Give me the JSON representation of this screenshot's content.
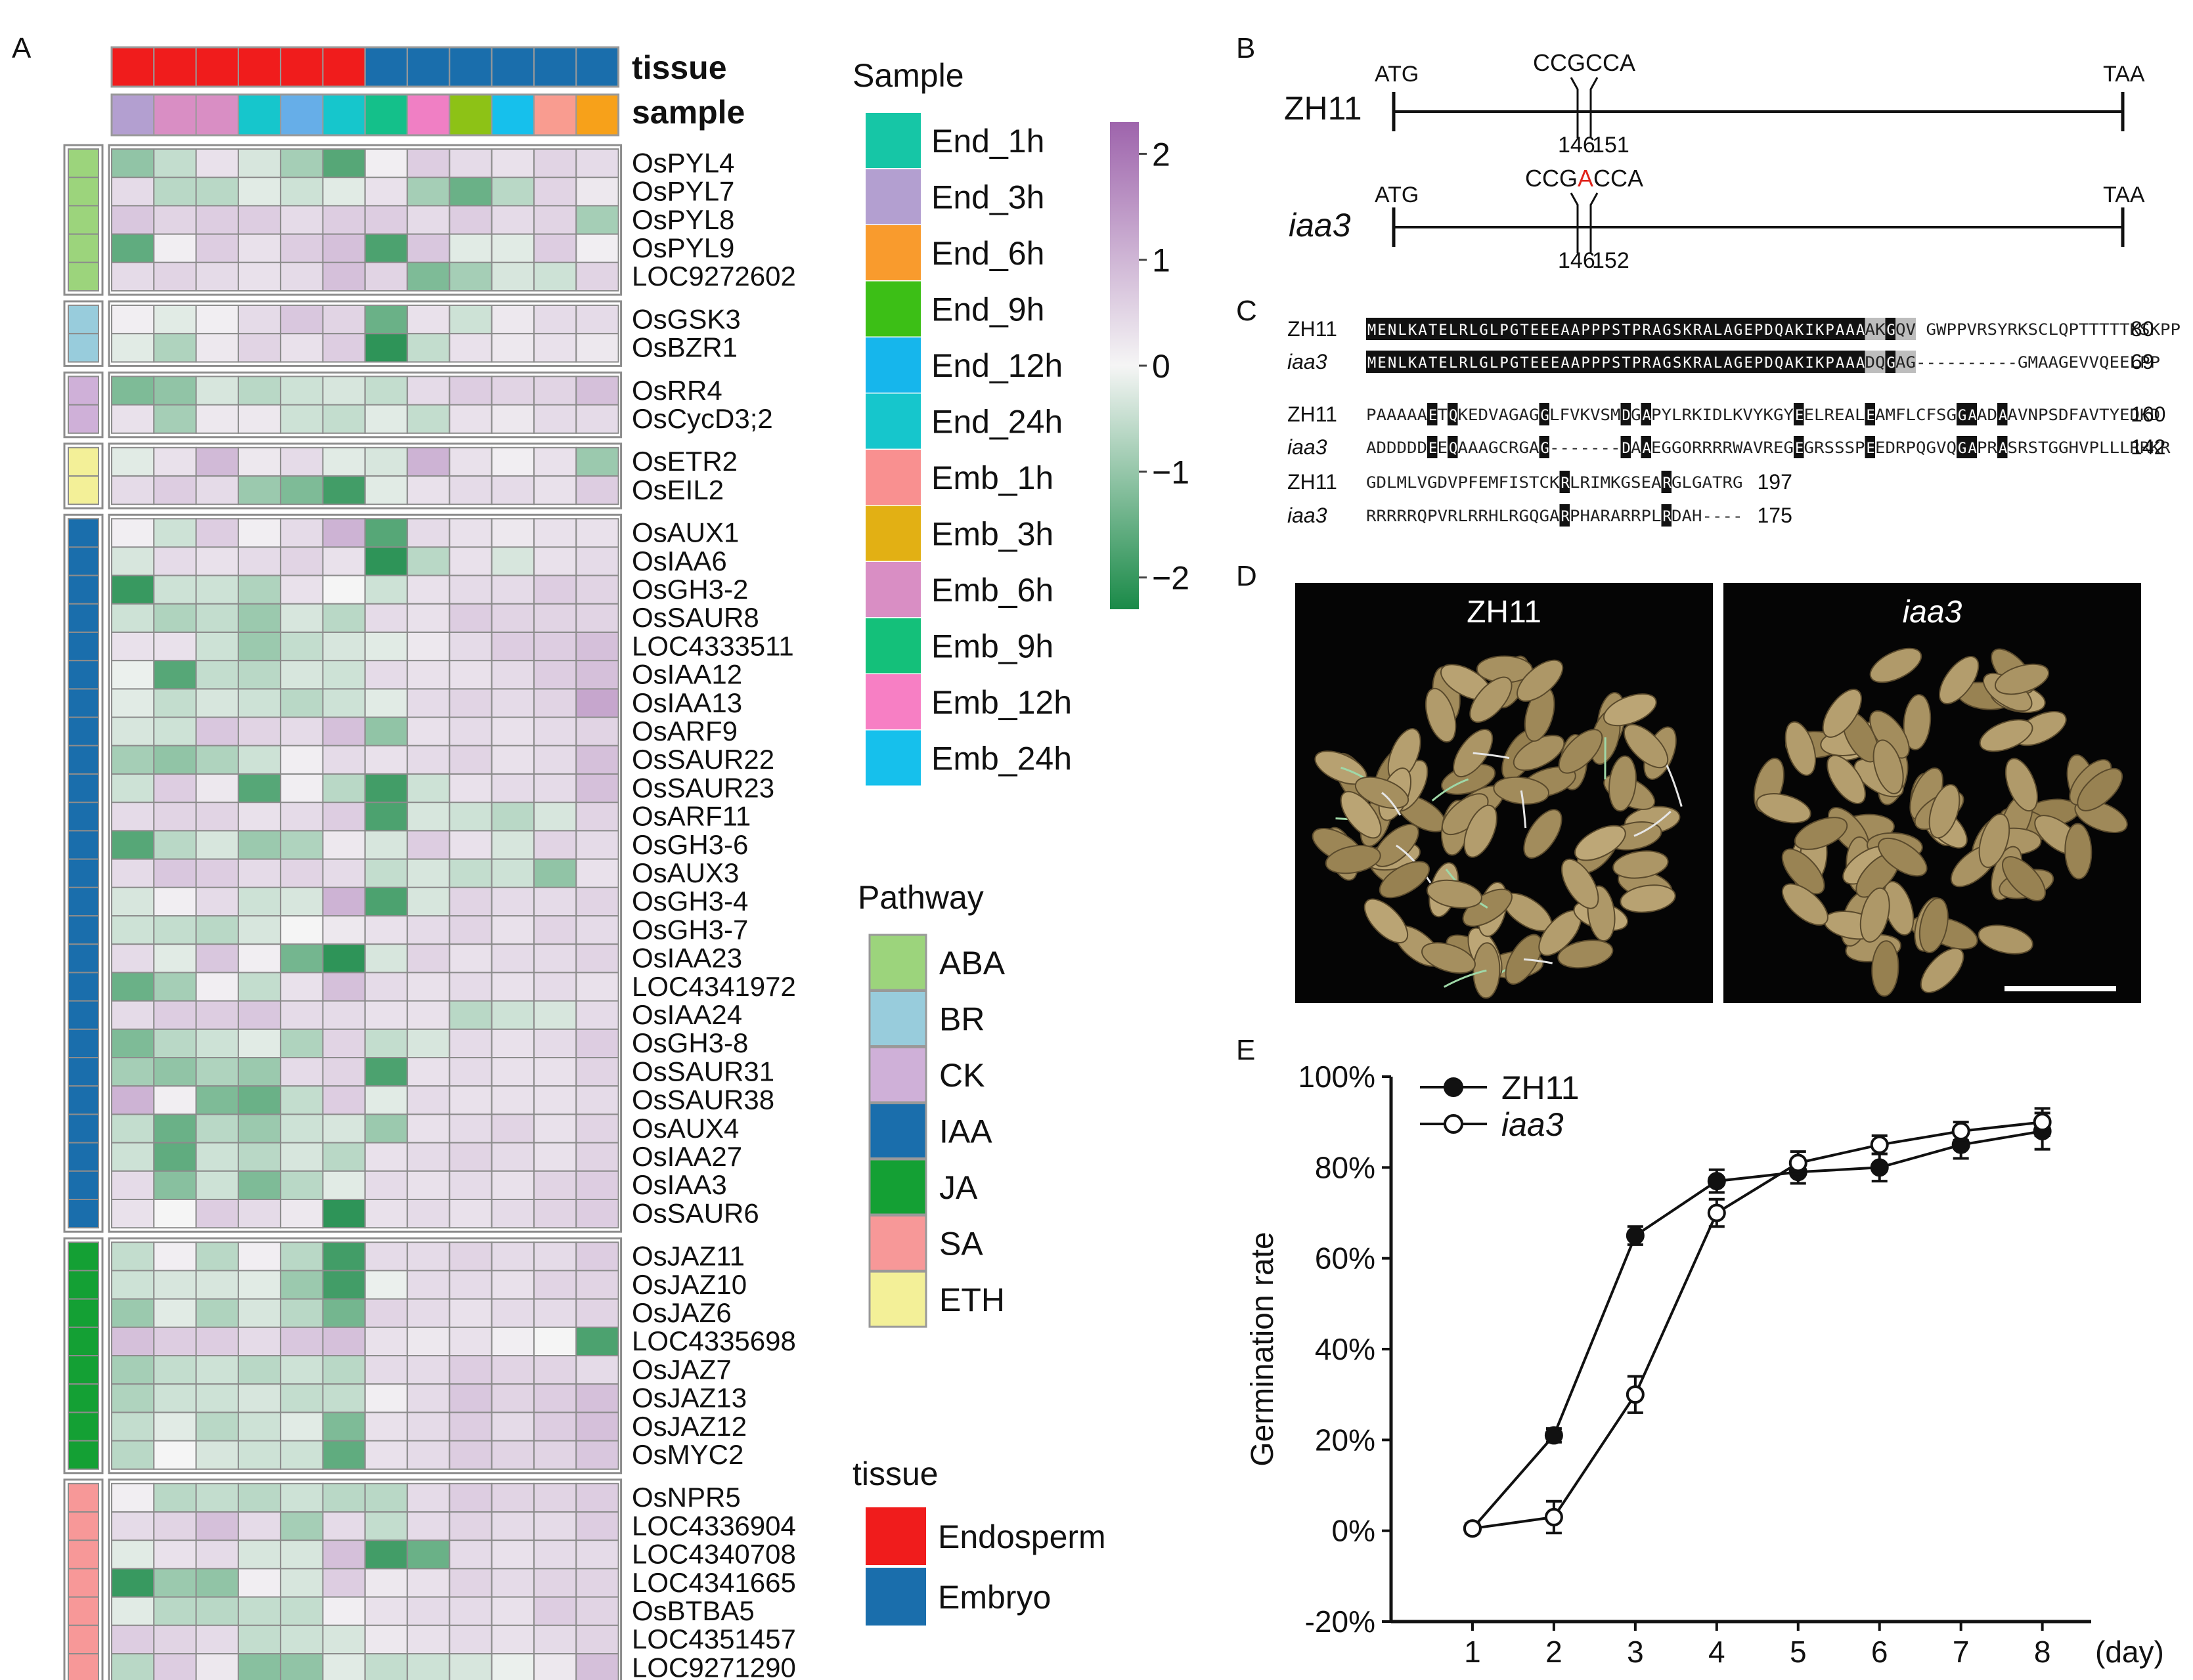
{
  "panel_letters": [
    "A",
    "B",
    "C",
    "D",
    "E"
  ],
  "heatmap": {
    "top_labels": {
      "tissue": "tissue",
      "sample": "sample"
    },
    "tissue_colors": [
      "Endosperm",
      "Endosperm",
      "Endosperm",
      "Endosperm",
      "Endosperm",
      "Endosperm",
      "Embryo",
      "Embryo",
      "Embryo",
      "Embryo",
      "Embryo",
      "Embryo"
    ],
    "sample_colors": [
      "#b39fd0",
      "#d98ec4",
      "#d98ec4",
      "#16c6cc",
      "#66aee8",
      "#16c6cc",
      "#14c08a",
      "#f07fc4",
      "#8dc216",
      "#16c0ec",
      "#f99c90",
      "#f7a11a"
    ],
    "groups": [
      {
        "pathway": "ABA",
        "genes": [
          "OsPYL4",
          "OsPYL7",
          "OsPYL8",
          "OsPYL9",
          "LOC9272602"
        ]
      },
      {
        "pathway": "BR",
        "genes": [
          "OsGSK3",
          "OsBZR1"
        ]
      },
      {
        "pathway": "CK",
        "genes": [
          "OsRR4",
          "OsCycD3;2"
        ]
      },
      {
        "pathway": "ETH",
        "genes": [
          "OsETR2",
          "OsEIL2"
        ]
      },
      {
        "pathway": "IAA",
        "genes": [
          "OsAUX1",
          "OsIAA6",
          "OsGH3-2",
          "OsSAUR8",
          "LOC4333511",
          "OsIAA12",
          "OsIAA13",
          "OsARF9",
          "OsSAUR22",
          "OsSAUR23",
          "OsARF11",
          "OsGH3-6",
          "OsAUX3",
          "OsGH3-4",
          "OsGH3-7",
          "OsIAA23",
          "LOC4341972",
          "OsIAA24",
          "OsGH3-8",
          "OsSAUR31",
          "OsSAUR38",
          "OsAUX4",
          "OsIAA27",
          "OsIAA3",
          "OsSAUR6"
        ]
      },
      {
        "pathway": "JA",
        "genes": [
          "OsJAZ11",
          "OsJAZ10",
          "OsJAZ6",
          "LOC4335698",
          "OsJAZ7",
          "OsJAZ13",
          "OsJAZ12",
          "OsMYC2"
        ]
      },
      {
        "pathway": "SA",
        "genes": [
          "OsNPR5",
          "LOC4336904",
          "LOC4340708",
          "LOC4341665",
          "OsBTBA5",
          "LOC4351457",
          "LOC9271290"
        ]
      }
    ],
    "values": [
      [
        -1.0,
        -0.5,
        0.3,
        -0.3,
        -0.8,
        -1.6,
        0.1,
        0.6,
        0.4,
        0.3,
        0.5,
        0.4
      ],
      [
        0.4,
        -0.6,
        -0.6,
        -0.2,
        -0.4,
        -0.2,
        0.3,
        -0.8,
        -1.4,
        -0.6,
        0.5,
        0.2
      ],
      [
        0.7,
        0.5,
        0.6,
        0.6,
        0.4,
        0.6,
        0.6,
        0.4,
        0.6,
        0.4,
        0.5,
        -0.8
      ],
      [
        -1.5,
        0.1,
        0.6,
        0.3,
        0.6,
        0.8,
        -1.7,
        0.7,
        -0.2,
        -0.2,
        0.6,
        0.1
      ],
      [
        0.4,
        0.5,
        0.4,
        0.3,
        0.4,
        0.8,
        0.5,
        -1.2,
        -0.8,
        -0.3,
        -0.4,
        0.5
      ],
      [
        0.1,
        -0.2,
        0.1,
        0.4,
        0.7,
        0.5,
        -1.4,
        0.3,
        -0.4,
        0.2,
        0.4,
        0.4
      ],
      [
        -0.2,
        -0.7,
        0.2,
        0.5,
        0.3,
        0.6,
        -2.0,
        -0.5,
        0.3,
        0.2,
        0.3,
        0.2
      ],
      [
        -1.2,
        -1.0,
        -0.3,
        -0.6,
        -0.4,
        -0.3,
        -0.5,
        0.4,
        0.6,
        0.5,
        0.5,
        0.8
      ],
      [
        0.3,
        -0.8,
        0.2,
        0.2,
        -0.4,
        -0.5,
        -0.2,
        -0.5,
        0.3,
        0.2,
        0.4,
        0.4
      ],
      [
        -0.2,
        0.3,
        0.9,
        0.2,
        0.4,
        -0.2,
        -0.3,
        1.0,
        0.3,
        0.1,
        0.3,
        -0.9
      ],
      [
        0.4,
        0.6,
        0.4,
        -0.9,
        -1.2,
        -1.8,
        -0.2,
        0.3,
        0.4,
        0.4,
        0.3,
        0.6
      ],
      [
        0.1,
        -0.4,
        0.6,
        0.1,
        0.4,
        1.0,
        -1.6,
        0.4,
        0.3,
        0.2,
        0.3,
        0.3
      ],
      [
        -0.3,
        0.4,
        0.3,
        0.4,
        0.5,
        0.3,
        -2.0,
        -0.6,
        0.3,
        -0.3,
        0.3,
        0.4
      ],
      [
        -1.9,
        -0.4,
        -0.4,
        -0.7,
        0.3,
        0.0,
        -0.4,
        0.3,
        0.4,
        0.4,
        0.6,
        0.5
      ],
      [
        -0.4,
        -0.7,
        -0.5,
        -0.9,
        -0.3,
        -0.6,
        0.4,
        0.3,
        0.6,
        0.5,
        0.5,
        0.5
      ],
      [
        0.3,
        0.3,
        -0.4,
        -0.9,
        -0.5,
        -0.3,
        -0.2,
        0.2,
        0.4,
        0.6,
        0.6,
        0.8
      ],
      [
        -0.1,
        -1.6,
        -0.5,
        -0.6,
        -0.3,
        -0.4,
        0.4,
        0.3,
        0.3,
        0.4,
        0.6,
        0.8
      ],
      [
        -0.2,
        -0.5,
        -0.3,
        -0.4,
        -0.6,
        -0.4,
        -0.2,
        0.4,
        0.5,
        0.4,
        0.5,
        1.2
      ],
      [
        -0.3,
        -0.4,
        0.7,
        0.5,
        0.4,
        0.8,
        -1.0,
        0.3,
        0.4,
        0.3,
        0.4,
        0.5
      ],
      [
        -0.8,
        -1.0,
        -0.7,
        -0.4,
        0.1,
        0.4,
        0.3,
        0.4,
        0.5,
        0.3,
        0.4,
        0.8
      ],
      [
        -0.4,
        0.6,
        0.2,
        -1.6,
        0.1,
        -0.6,
        -1.8,
        -0.4,
        0.3,
        0.4,
        0.4,
        0.8
      ],
      [
        0.4,
        0.5,
        0.5,
        0.3,
        0.4,
        0.6,
        -1.7,
        -0.3,
        -0.4,
        -0.6,
        -0.3,
        0.5
      ],
      [
        -1.6,
        -0.6,
        -0.3,
        -0.9,
        -0.7,
        0.2,
        -0.3,
        0.6,
        0.3,
        -0.3,
        0.5,
        0.4
      ],
      [
        0.4,
        0.7,
        0.6,
        0.4,
        0.5,
        0.4,
        -0.5,
        -0.3,
        -0.5,
        -0.4,
        -1.0,
        0.3
      ],
      [
        -0.3,
        0.1,
        0.4,
        -0.4,
        -0.3,
        1.0,
        -1.7,
        -0.3,
        0.5,
        0.4,
        0.4,
        0.5
      ],
      [
        -0.4,
        -0.5,
        -0.6,
        -0.3,
        0.0,
        0.2,
        0.3,
        0.4,
        0.5,
        0.3,
        0.5,
        0.4
      ],
      [
        0.4,
        -0.2,
        0.7,
        0.1,
        -1.3,
        -2.0,
        -0.3,
        0.5,
        0.3,
        0.4,
        0.4,
        0.5
      ],
      [
        -1.4,
        -0.8,
        0.1,
        -0.5,
        0.3,
        0.8,
        0.4,
        0.3,
        0.4,
        0.3,
        0.4,
        0.3
      ],
      [
        0.4,
        0.6,
        0.6,
        0.7,
        0.4,
        0.4,
        0.3,
        0.3,
        -0.6,
        -0.4,
        -0.3,
        0.4
      ],
      [
        -1.2,
        -0.6,
        -0.4,
        -0.2,
        -0.7,
        0.5,
        -0.5,
        -0.3,
        0.4,
        0.3,
        0.4,
        0.6
      ],
      [
        -0.8,
        -1.0,
        -0.7,
        -0.9,
        0.4,
        0.5,
        -1.7,
        0.3,
        0.4,
        0.3,
        0.3,
        0.5
      ],
      [
        1.0,
        0.1,
        -1.2,
        -1.4,
        -0.5,
        0.6,
        -0.2,
        0.4,
        0.3,
        0.3,
        0.3,
        0.4
      ],
      [
        -0.5,
        -1.4,
        -0.6,
        -0.9,
        -0.4,
        -0.3,
        -0.9,
        0.3,
        0.4,
        0.5,
        0.3,
        0.5
      ],
      [
        -0.4,
        -1.5,
        -0.4,
        -0.6,
        -0.3,
        -0.6,
        0.3,
        0.4,
        0.5,
        0.4,
        0.3,
        0.5
      ],
      [
        0.4,
        -1.1,
        -0.4,
        -1.2,
        -0.6,
        -0.2,
        0.4,
        0.3,
        0.4,
        0.3,
        0.5,
        0.6
      ],
      [
        0.3,
        0.0,
        0.6,
        0.4,
        0.2,
        -2.0,
        0.3,
        0.4,
        0.3,
        0.4,
        0.5,
        0.6
      ],
      [
        -0.5,
        0.1,
        -0.6,
        0.1,
        -0.6,
        -1.8,
        0.4,
        0.4,
        0.5,
        0.4,
        0.4,
        0.6
      ],
      [
        -0.4,
        -0.3,
        -0.3,
        -0.2,
        -0.9,
        -1.8,
        -0.1,
        0.4,
        0.4,
        0.3,
        0.5,
        0.5
      ],
      [
        -0.9,
        -0.2,
        -0.7,
        -0.3,
        -0.6,
        -1.3,
        0.5,
        0.4,
        0.3,
        0.4,
        0.4,
        0.5
      ],
      [
        0.8,
        0.6,
        0.6,
        0.4,
        0.7,
        0.8,
        0.3,
        0.2,
        0.3,
        0.1,
        0.0,
        -1.7
      ],
      [
        -0.8,
        -0.5,
        -0.4,
        -0.6,
        -0.4,
        -0.6,
        0.4,
        0.4,
        0.6,
        0.5,
        0.5,
        0.4
      ],
      [
        -0.7,
        -0.4,
        -0.4,
        -0.3,
        -0.5,
        -0.5,
        0.1,
        0.4,
        0.7,
        0.5,
        0.6,
        0.8
      ],
      [
        -0.5,
        -0.2,
        -0.6,
        -0.4,
        -0.2,
        -1.2,
        0.3,
        0.4,
        0.6,
        0.4,
        0.6,
        0.8
      ],
      [
        -0.6,
        0.0,
        -0.3,
        -0.4,
        -0.4,
        -1.5,
        0.3,
        0.4,
        0.6,
        0.5,
        0.5,
        0.7
      ],
      [
        0.1,
        -0.6,
        -0.5,
        -0.6,
        -0.4,
        -0.6,
        -0.6,
        0.4,
        0.6,
        0.5,
        0.5,
        0.6
      ],
      [
        0.4,
        0.5,
        0.8,
        0.4,
        -0.8,
        0.4,
        -0.5,
        0.4,
        0.5,
        0.4,
        0.4,
        0.6
      ],
      [
        -0.2,
        0.3,
        0.4,
        -0.3,
        -0.3,
        0.8,
        -1.8,
        -1.4,
        0.4,
        0.3,
        0.4,
        0.4
      ],
      [
        -1.9,
        -0.9,
        -1.0,
        0.1,
        -0.3,
        0.6,
        0.2,
        0.3,
        0.5,
        0.4,
        0.5,
        0.5
      ],
      [
        -0.2,
        -0.6,
        -0.6,
        -0.5,
        -0.5,
        0.1,
        0.3,
        0.4,
        0.4,
        0.3,
        0.6,
        0.5
      ],
      [
        0.6,
        0.5,
        0.4,
        -0.5,
        -0.4,
        -0.3,
        0.2,
        0.3,
        0.4,
        0.3,
        0.4,
        0.5
      ],
      [
        -0.6,
        0.6,
        0.2,
        -1.1,
        -1.0,
        -0.2,
        -0.5,
        -0.4,
        -0.3,
        -0.1,
        0.2,
        0.8
      ]
    ],
    "colorbar": {
      "ticks": [
        "2",
        "1",
        "0",
        "−1",
        "−2"
      ],
      "tick_values": [
        2,
        1,
        0,
        -1,
        -2
      ],
      "min": -2.3,
      "max": 2.3
    }
  },
  "legends": {
    "sample": {
      "title": "Sample",
      "items": [
        {
          "label": "End_1h",
          "color": "#16c6a6"
        },
        {
          "label": "End_3h",
          "color": "#b39fd0"
        },
        {
          "label": "End_6h",
          "color": "#f99b2d"
        },
        {
          "label": "End_9h",
          "color": "#3cbf16"
        },
        {
          "label": "End_12h",
          "color": "#16b6ec"
        },
        {
          "label": "End_24h",
          "color": "#16c6cc"
        },
        {
          "label": "Emb_1h",
          "color": "#f99090"
        },
        {
          "label": "Emb_3h",
          "color": "#e2b014"
        },
        {
          "label": "Emb_6h",
          "color": "#d98ec4"
        },
        {
          "label": "Emb_9h",
          "color": "#14c07a"
        },
        {
          "label": "Emb_12h",
          "color": "#f77fc4"
        },
        {
          "label": "Emb_24h",
          "color": "#16c0ec"
        }
      ]
    },
    "pathway": {
      "title": "Pathway",
      "items": [
        {
          "label": "ABA",
          "color": "#9cd47c"
        },
        {
          "label": "BR",
          "color": "#98ccdc"
        },
        {
          "label": "CK",
          "color": "#cfb0d8"
        },
        {
          "label": "IAA",
          "color": "#1a6eac"
        },
        {
          "label": "JA",
          "color": "#14a034"
        },
        {
          "label": "SA",
          "color": "#f79898"
        },
        {
          "label": "ETH",
          "color": "#f3f098"
        }
      ]
    },
    "tissue": {
      "title": "tissue",
      "items": [
        {
          "label": "Endosperm",
          "color": "#f01c1c"
        },
        {
          "label": "Embryo",
          "color": "#1a6eac"
        }
      ]
    }
  },
  "gene_structure": {
    "rows": [
      {
        "name": "ZH11",
        "italic": false,
        "start": "ATG",
        "end": "TAA",
        "seq": [
          "CCG",
          "",
          "CCA"
        ],
        "pos_left": "146",
        "pos_right": "151"
      },
      {
        "name": "iaa3",
        "italic": true,
        "start": "ATG",
        "end": "TAA",
        "seq": [
          "CCG",
          "A",
          "CCA"
        ],
        "pos_left": "146",
        "pos_right": "152"
      }
    ]
  },
  "alignment": {
    "blocks": [
      {
        "lines": [
          {
            "name": "ZH11",
            "italic": false,
            "seq": "MENLKATELRLGLPGTEEEAAPPPSTPRAGSKRALAGEPDQAKIKPAAAAKGQV GWPPVRSYRKSCLQPTTTTTKSKPP",
            "num": "80"
          },
          {
            "name": "iaa3",
            "italic": true,
            "seq": "MENLKATELRLGLPGTEEEAAPPPSTPRAGSKRALAGEPDQAKIKPAAADQGAG----------GMAAGEVVQEELPP",
            "num": "69"
          }
        ]
      },
      {
        "lines": [
          {
            "name": "ZH11",
            "italic": false,
            "seq": "PAAAAAETQKEDVAGAGGLFVKVSMDGAPYLRKIDLKVYKGYEELREALEAMFLCFSGGAADAAVNPSDFAVTYEDKD",
            "num": "160"
          },
          {
            "name": "iaa3",
            "italic": true,
            "seq": "ADDDDDEEQAAAGCRGAG-------DAAEGGORRRRWAVREGEGRSSSPEEDRPQGVQGAPRASRSTGGHVPLLLRRKR",
            "num": "142"
          }
        ]
      },
      {
        "lines": [
          {
            "name": "ZH11",
            "italic": false,
            "seq": "GDLMLVGDVPFEMFISTCKRLRIMKGSEARGLGATRG",
            "num": "197"
          },
          {
            "name": "iaa3",
            "italic": true,
            "seq": "RRRRRQPVRLRRHLRGQGARPHARARRPLRDAH----",
            "num": "175"
          }
        ]
      }
    ]
  },
  "photos": [
    {
      "label": "ZH11",
      "italic": false
    },
    {
      "label": "iaa3",
      "italic": true
    }
  ],
  "chart_data": {
    "type": "line",
    "title": "",
    "xlabel": "",
    "x_unit_label": "(day)",
    "ylabel": "Germination rate",
    "x": [
      1,
      2,
      3,
      4,
      5,
      6,
      7,
      8
    ],
    "x_tick_labels": [
      "1",
      "2",
      "3",
      "4",
      "5",
      "6",
      "7",
      "8"
    ],
    "xlim": [
      0,
      8.6
    ],
    "ylim": [
      -20,
      100
    ],
    "y_ticks": [
      -20,
      0,
      20,
      40,
      60,
      80,
      100
    ],
    "y_tick_labels": [
      "-20%",
      "0%",
      "20%",
      "40%",
      "60%",
      "80%",
      "100%"
    ],
    "grid": false,
    "legend_position": "top-left",
    "series": [
      {
        "name": "ZH11",
        "italic": false,
        "marker": "filled-circle",
        "values": [
          0.5,
          21,
          65,
          77,
          79,
          80,
          85,
          88
        ],
        "errors": [
          1,
          1.5,
          2,
          2.5,
          2.5,
          3,
          3,
          4
        ]
      },
      {
        "name": "iaa3",
        "italic": true,
        "marker": "open-circle",
        "values": [
          0.5,
          3,
          30,
          70,
          81,
          85,
          88,
          90
        ],
        "errors": [
          1,
          3.5,
          4,
          3,
          2.5,
          2,
          2,
          3
        ]
      }
    ]
  }
}
